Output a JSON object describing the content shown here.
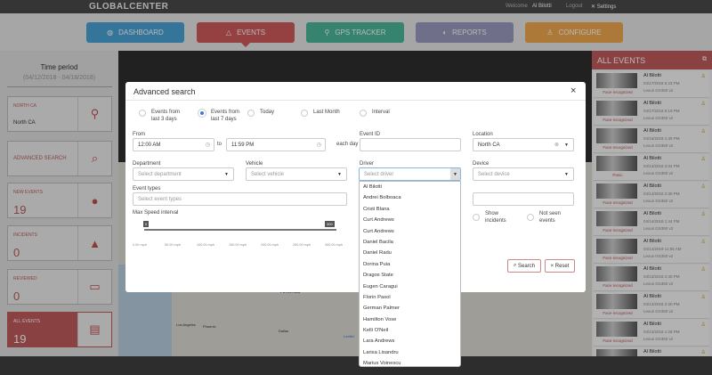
{
  "header": {
    "logo": "GLOBALCENTER",
    "welcome": "Welcome",
    "user": "Al Bilotti",
    "logout": "Logout",
    "settings": "Settings"
  },
  "nav": [
    {
      "label": "DASHBOARD",
      "color": "#4aa3d6",
      "icon": "dashboard-icon"
    },
    {
      "label": "EVENTS",
      "color": "#d05a5a",
      "icon": "warning-icon"
    },
    {
      "label": "GPS TRACKER",
      "color": "#4cb89a",
      "icon": "pin-icon"
    },
    {
      "label": "REPORTS",
      "color": "#9a9ac0",
      "icon": "chart-icon"
    },
    {
      "label": "CONFIGURE",
      "color": "#f0a850",
      "icon": "user-icon"
    }
  ],
  "left": {
    "time_title": "Time period",
    "time_range": "(04/12/2018 - 04/18/2018)",
    "location_label": "NORTH CA",
    "location_value": "North CA",
    "advanced": "ADVANCED SEARCH",
    "new_events_label": "NEW EVENTS",
    "new_events": "19",
    "incidents_label": "INCIDENTS",
    "incidents": "0",
    "reviewed_label": "REVIEWED",
    "reviewed": "0",
    "all_label": "ALL EVENTS",
    "all": "19"
  },
  "map": {
    "america": "America",
    "la": "Los Angeles",
    "phoenix": "Phoenix",
    "dallas": "Dallas",
    "leaflet": "Leaflet"
  },
  "right": {
    "title": "ALL EVENTS",
    "events": [
      {
        "name": "Al Bilotti",
        "date": "04/17/2018 5:23 PM",
        "vehicle": "Lexus GS350 v2",
        "type": "Face recognized"
      },
      {
        "name": "Al Bilotti",
        "date": "04/17/2018 5:19 PM",
        "vehicle": "Lexus GS350 v2",
        "type": "Face recognized"
      },
      {
        "name": "Al Bilotti",
        "date": "04/16/2018 1:49 PM",
        "vehicle": "Lexus GS350 v2",
        "type": "Face recognized"
      },
      {
        "name": "Al Bilotti",
        "date": "04/14/2018 3:34 PM",
        "vehicle": "Lexus GS350 v2",
        "type": "Panic"
      },
      {
        "name": "Al Bilotti",
        "date": "04/14/2018 2:30 PM",
        "vehicle": "Lexus GS350 v2",
        "type": "Face recognized"
      },
      {
        "name": "Al Bilotti",
        "date": "04/14/2018 1:44 PM",
        "vehicle": "Lexus GS350 v2",
        "type": "Face recognized"
      },
      {
        "name": "Al Bilotti",
        "date": "04/14/2018 11:55 AM",
        "vehicle": "Lexus GS350 v2",
        "type": "Face recognized"
      },
      {
        "name": "Al Bilotti",
        "date": "04/13/2018 2:40 PM",
        "vehicle": "Lexus GS350 v2",
        "type": "Face recognized"
      },
      {
        "name": "Al Bilotti",
        "date": "04/13/2018 2:20 PM",
        "vehicle": "Lexus GS350 v2",
        "type": "Face recognized"
      },
      {
        "name": "Al Bilotti",
        "date": "04/13/2018 1:28 PM",
        "vehicle": "Lexus GS350 v2",
        "type": "Face recognized"
      },
      {
        "name": "Al Bilotti",
        "date": "",
        "vehicle": "",
        "type": ""
      }
    ]
  },
  "modal": {
    "title": "Advanced search",
    "close": "×",
    "radios": [
      {
        "label": "Events from last 3 days",
        "checked": false
      },
      {
        "label": "Events from last 7 days",
        "checked": true
      },
      {
        "label": "Today",
        "checked": false
      },
      {
        "label": "Last Month",
        "checked": false
      },
      {
        "label": "Interval",
        "checked": false
      }
    ],
    "from_label": "From",
    "from_value": "12:00 AM",
    "to": "to",
    "to_value": "11:59 PM",
    "each_day": "each day",
    "event_id_label": "Event ID",
    "location_label": "Location",
    "location_value": "North CA",
    "department_label": "Department",
    "department_ph": "Select department",
    "vehicle_label": "Vehicle",
    "vehicle_ph": "Select vehicle",
    "driver_label": "Driver",
    "driver_ph": "Select driver",
    "device_label": "Device",
    "device_ph": "Select device",
    "event_types_label": "Event types",
    "event_types_ph": "Select event types",
    "speed_label": "Max Speed interval",
    "speed_min": "0",
    "speed_max": "300",
    "ticks": [
      "0.00 mph",
      "50.00 mph",
      "100.00 mph",
      "150.00 mph",
      "200.00 mph",
      "250.00 mph",
      "300.00 mph"
    ],
    "show_incidents": "Show incidents",
    "not_seen": "Not seen events",
    "search": "Search",
    "reset": "Reset",
    "drivers": [
      "Al Bilotti",
      "Andrei Bolboaca",
      "Cristi Blana",
      "Curt Andrews",
      "Curt Andrews",
      "Daniel Bacila",
      "Daniel Radu",
      "Dorina Puia",
      "Dragos State",
      "Eugen Caragui",
      "Florin Pasol",
      "German Palmer",
      "Hamilton Vose",
      "Kelli O'Neil",
      "Lara Andrews",
      "Larisa Lisandru",
      "Marius Voinescu"
    ]
  }
}
